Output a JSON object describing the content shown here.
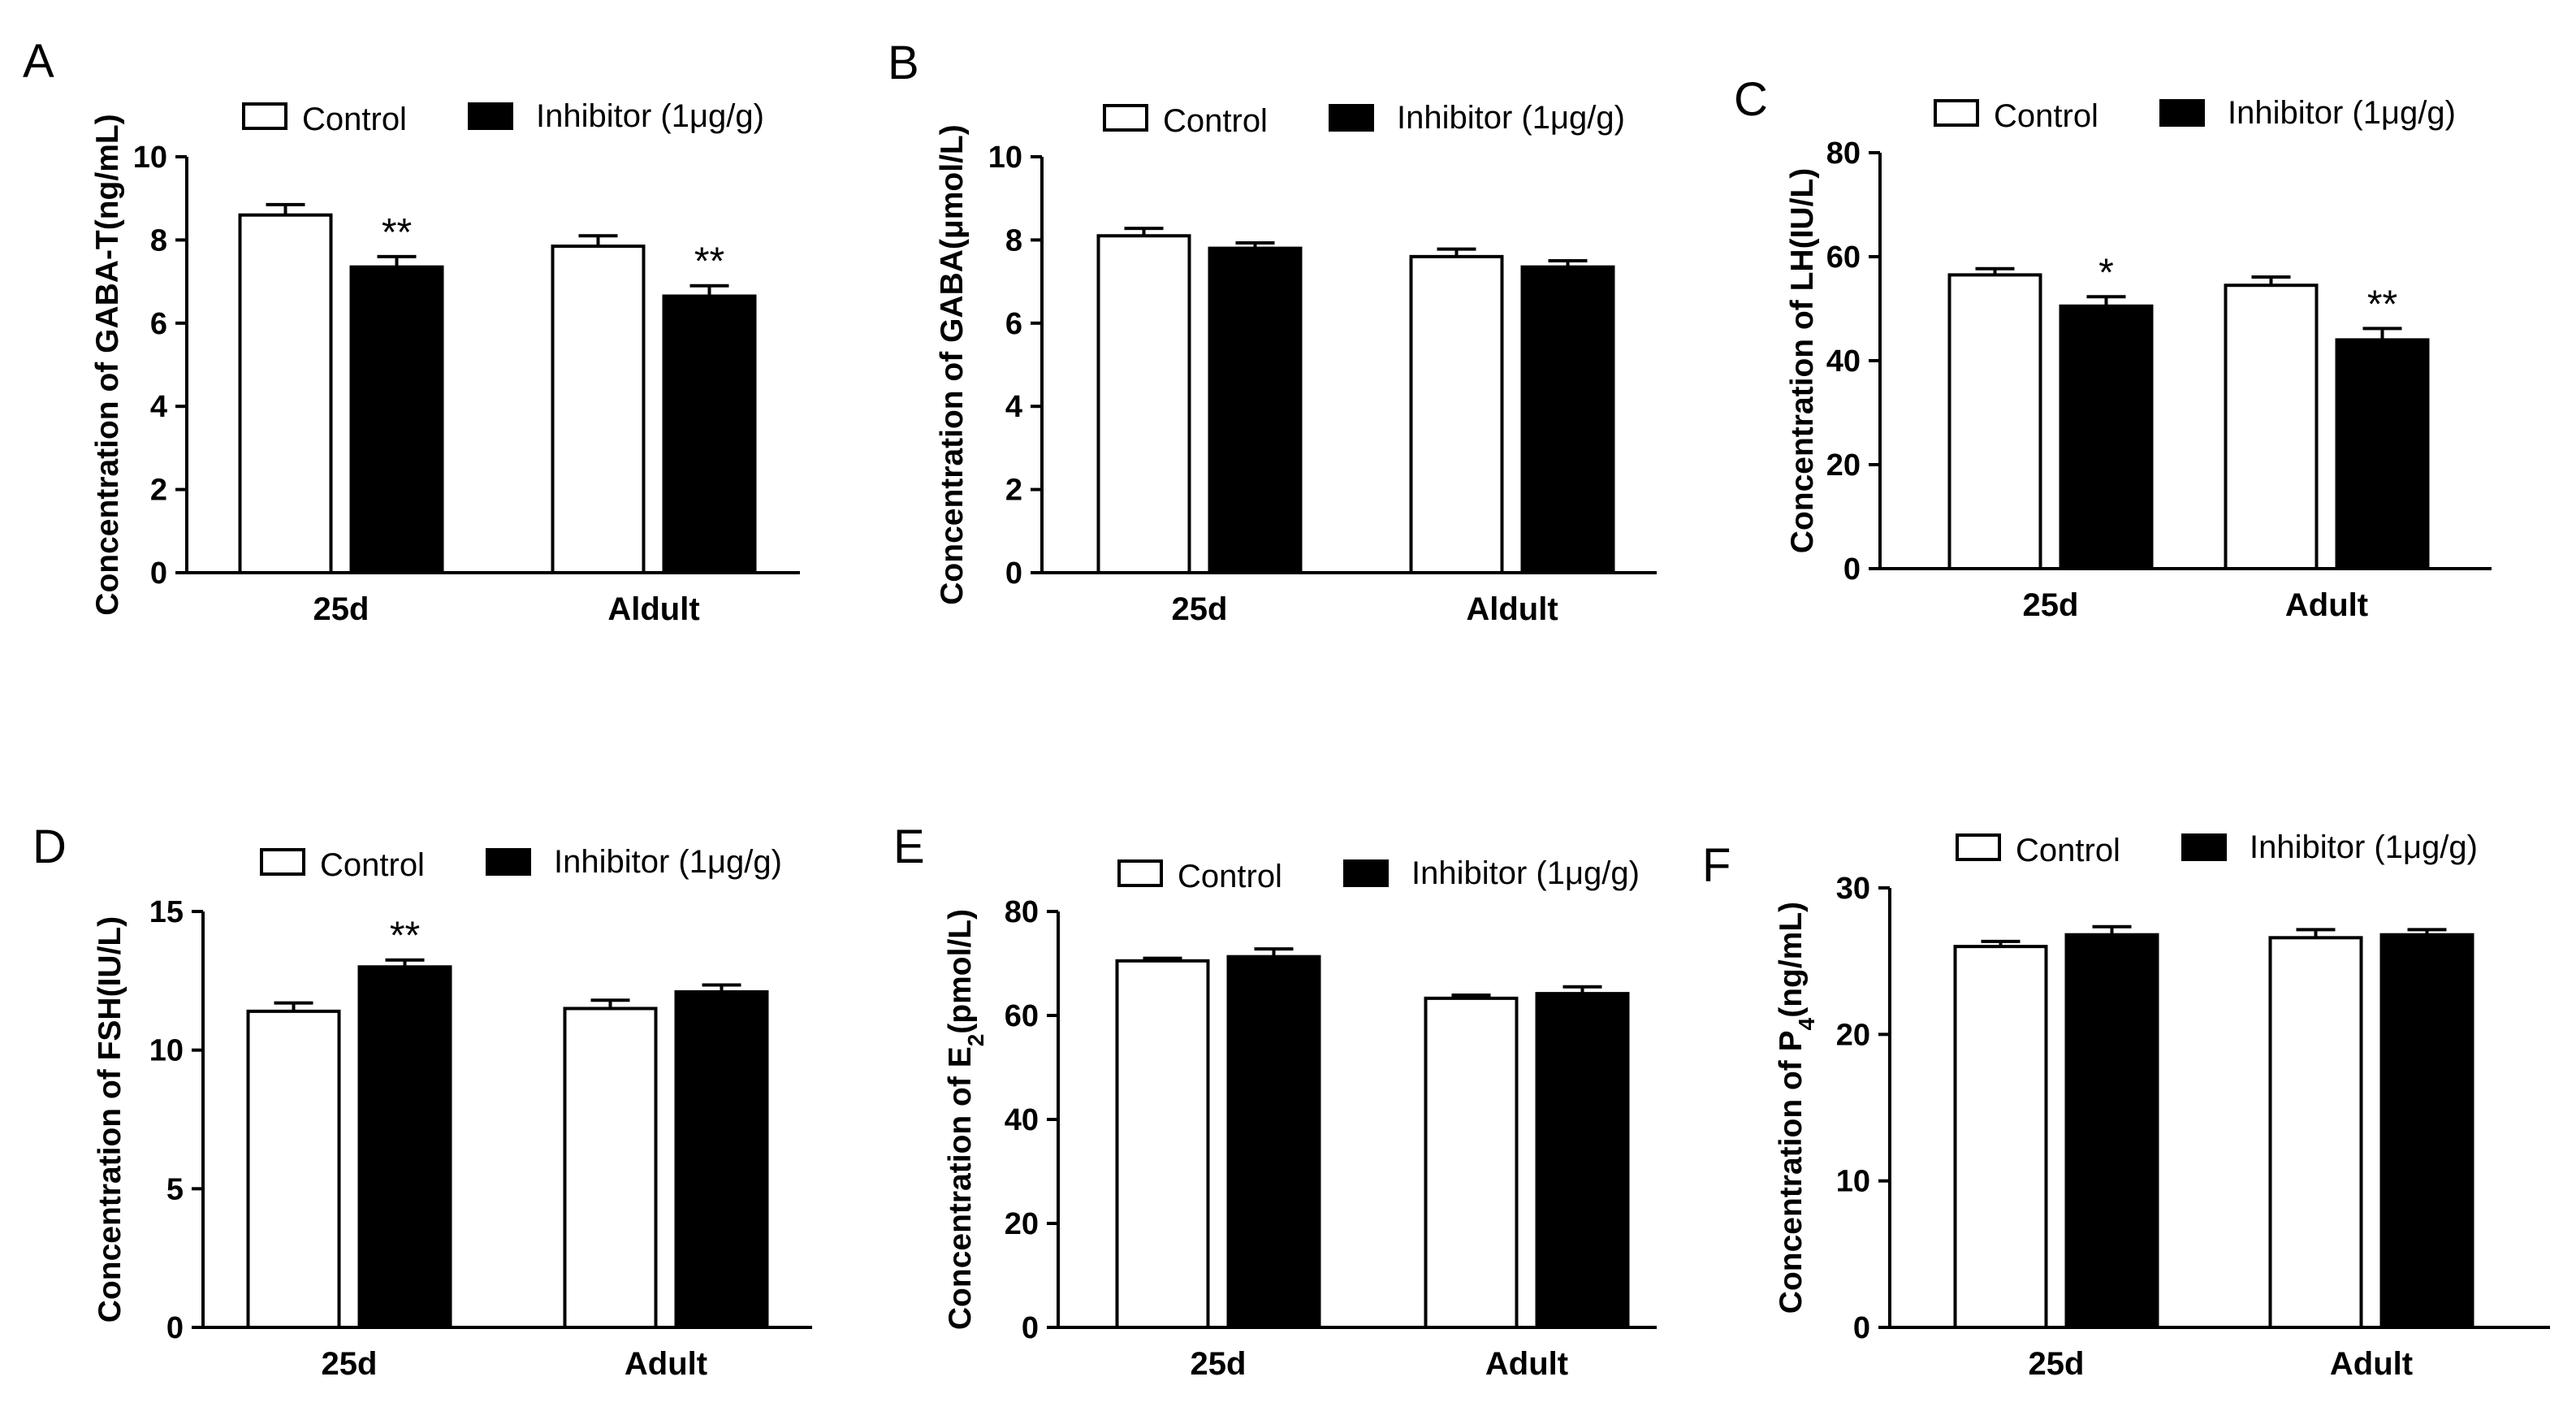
{
  "legend": {
    "control": "Control",
    "inhibitor": "Inhibitor (1μg/g)"
  },
  "colors": {
    "control_fill": "#ffffff",
    "inhibitor_fill": "#000000",
    "stroke": "#000000"
  },
  "chart_data": [
    {
      "panel": "A",
      "type": "bar",
      "ylabel": [
        "Concentration of GABA-T(ng/mL)"
      ],
      "categories": [
        "25d",
        "Aldult"
      ],
      "ylim": [
        0,
        10
      ],
      "yticks": [
        "0",
        "2",
        "4",
        "6",
        "8",
        "10"
      ],
      "series": [
        {
          "name": "Control",
          "values": [
            8.6,
            7.85
          ],
          "errors": [
            0.25,
            0.25
          ]
        },
        {
          "name": "Inhibitor (1μg/g)",
          "values": [
            7.35,
            6.65
          ],
          "errors": [
            0.25,
            0.25
          ]
        }
      ],
      "annotations": [
        "",
        "**",
        "",
        "**"
      ]
    },
    {
      "panel": "B",
      "type": "bar",
      "ylabel": [
        "Concentration of GABA(μmol/L)"
      ],
      "categories": [
        "25d",
        "Aldult"
      ],
      "ylim": [
        0,
        10
      ],
      "yticks": [
        "0",
        "2",
        "4",
        "6",
        "8",
        "10"
      ],
      "series": [
        {
          "name": "Control",
          "values": [
            8.1,
            7.6
          ],
          "errors": [
            0.18,
            0.18
          ]
        },
        {
          "name": "Inhibitor (1μg/g)",
          "values": [
            7.8,
            7.35
          ],
          "errors": [
            0.13,
            0.15
          ]
        }
      ],
      "annotations": [
        "",
        "",
        "",
        ""
      ]
    },
    {
      "panel": "C",
      "type": "bar",
      "ylabel": [
        "Concentration of LH(IU/L)"
      ],
      "categories": [
        "25d",
        "Adult"
      ],
      "ylim": [
        0,
        80
      ],
      "yticks": [
        "0",
        "20",
        "40",
        "60",
        "80"
      ],
      "series": [
        {
          "name": "Control",
          "values": [
            56.5,
            54.5
          ],
          "errors": [
            1.2,
            1.6
          ]
        },
        {
          "name": "Inhibitor (1μg/g)",
          "values": [
            50.5,
            44
          ],
          "errors": [
            1.8,
            2.2
          ]
        }
      ],
      "annotations": [
        "",
        "*",
        "",
        "**"
      ]
    },
    {
      "panel": "D",
      "type": "bar",
      "ylabel": [
        "Concentration of FSH(IU/L)"
      ],
      "categories": [
        "25d",
        "Adult"
      ],
      "ylim": [
        0,
        15
      ],
      "yticks": [
        "0",
        "5",
        "10",
        "15"
      ],
      "series": [
        {
          "name": "Control",
          "values": [
            11.4,
            11.5
          ],
          "errors": [
            0.3,
            0.3
          ]
        },
        {
          "name": "Inhibitor (1μg/g)",
          "values": [
            13.0,
            12.1
          ],
          "errors": [
            0.25,
            0.25
          ]
        }
      ],
      "annotations": [
        "",
        "**",
        "",
        ""
      ]
    },
    {
      "panel": "E",
      "type": "bar",
      "ylabel": [
        "Concentration of E",
        "2",
        "(pmol/L)"
      ],
      "categories": [
        "25d",
        "Adult"
      ],
      "ylim": [
        0,
        80
      ],
      "yticks": [
        "0",
        "20",
        "40",
        "60",
        "80"
      ],
      "series": [
        {
          "name": "Control",
          "values": [
            70.5,
            63.3
          ],
          "errors": [
            0.5,
            0.6
          ]
        },
        {
          "name": "Inhibitor (1μg/g)",
          "values": [
            71.3,
            64.2
          ],
          "errors": [
            1.5,
            1.3
          ]
        }
      ],
      "annotations": [
        "",
        "",
        "",
        ""
      ]
    },
    {
      "panel": "F",
      "type": "bar",
      "ylabel": [
        "Concentration of P",
        "4",
        "(ng/mL)"
      ],
      "categories": [
        "25d",
        "Adult"
      ],
      "ylim": [
        0,
        30
      ],
      "yticks": [
        "0",
        "10",
        "20",
        "30"
      ],
      "series": [
        {
          "name": "Control",
          "values": [
            26.0,
            26.6
          ],
          "errors": [
            0.35,
            0.55
          ]
        },
        {
          "name": "Inhibitor (1μg/g)",
          "values": [
            26.8,
            26.8
          ],
          "errors": [
            0.55,
            0.35
          ]
        }
      ],
      "annotations": [
        "",
        "",
        "",
        ""
      ]
    }
  ]
}
